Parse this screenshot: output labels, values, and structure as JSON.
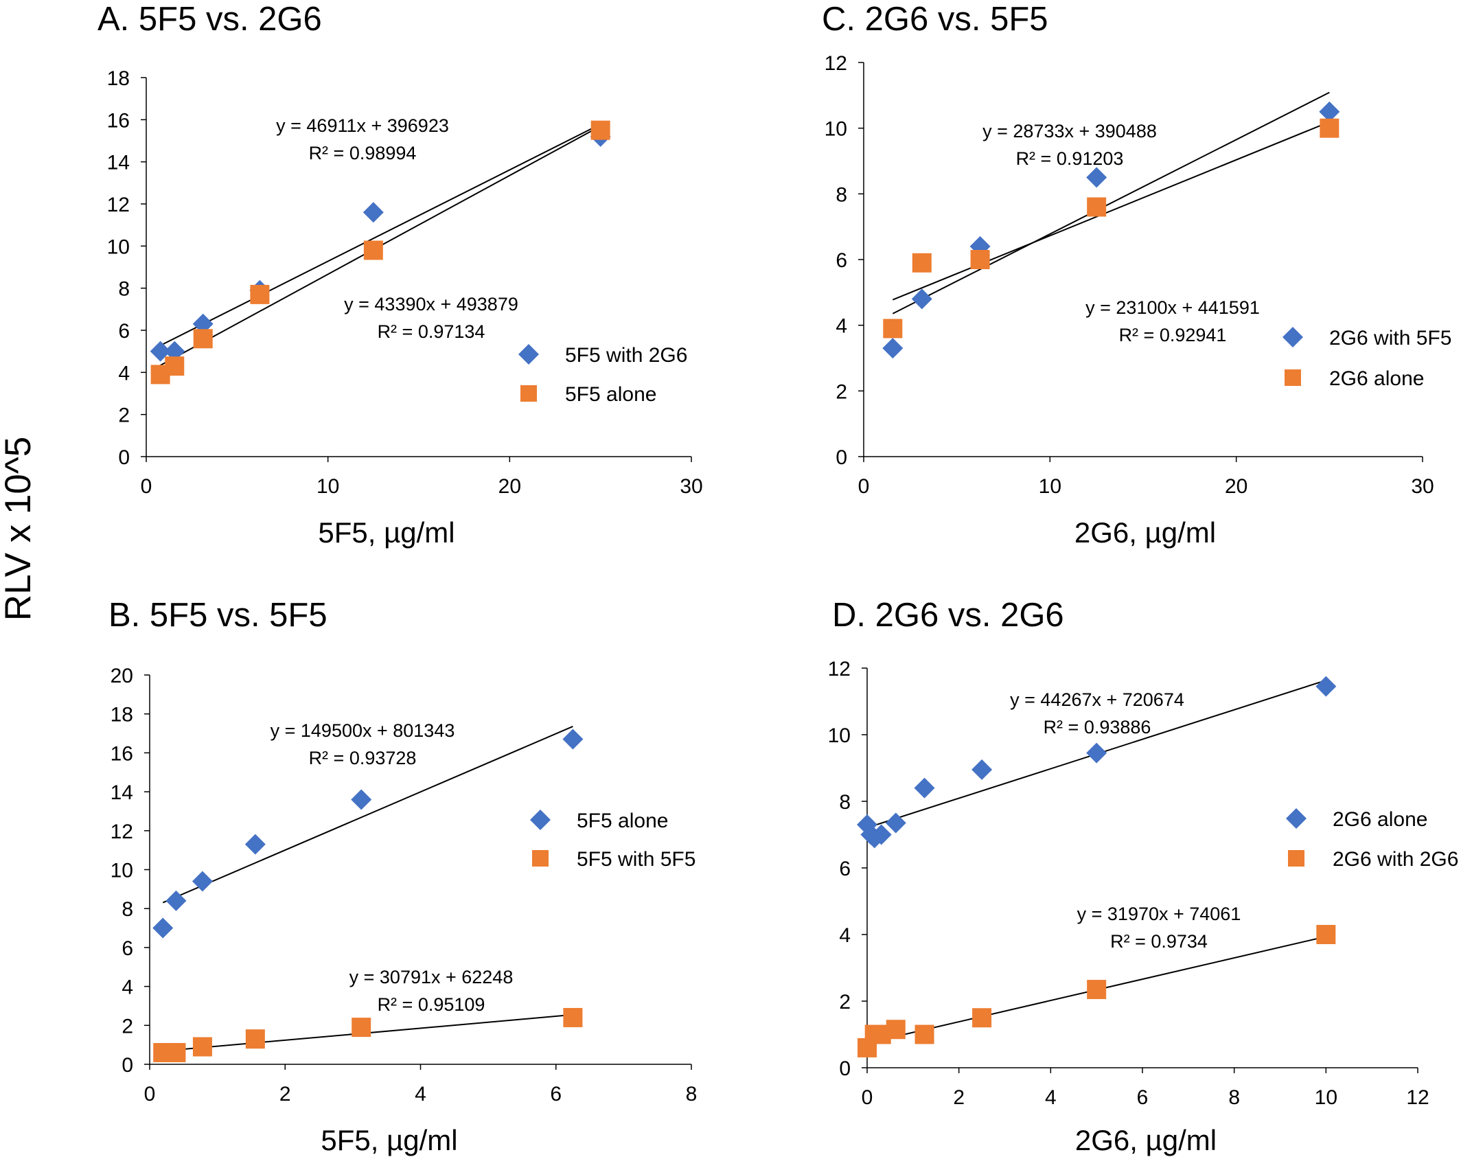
{
  "figure": {
    "shared_ylabel": "RLV x 10^5"
  },
  "chart_data": [
    {
      "id": "A",
      "type": "scatter",
      "title": "A.  5F5 vs. 2G6",
      "xlabel": "5F5, µg/ml",
      "ylabel": "RLV x 10^5",
      "xlim": [
        0,
        30
      ],
      "ylim": [
        0,
        18
      ],
      "xticks": [
        0,
        10,
        20,
        30
      ],
      "yticks": [
        0,
        2,
        4,
        6,
        8,
        10,
        12,
        14,
        16,
        18
      ],
      "legend_position": "right",
      "series": [
        {
          "name": "5F5 with 2G6",
          "marker": "diamond",
          "color": "#4472C4",
          "x": [
            0.78,
            1.56,
            3.125,
            6.25,
            12.5,
            25
          ],
          "y": [
            5.0,
            5.0,
            6.3,
            7.9,
            11.6,
            15.2
          ],
          "trendline": {
            "slope": 0.46911,
            "intercept": 3.96923,
            "x_range": [
              0.78,
              25
            ],
            "equation": "y = 46911x + 396923",
            "r2": "R² = 0.98994"
          }
        },
        {
          "name": "5F5 alone",
          "marker": "square",
          "color": "#ED7D31",
          "x": [
            0.78,
            1.56,
            3.125,
            6.25,
            12.5,
            25
          ],
          "y": [
            3.9,
            4.3,
            5.6,
            7.7,
            9.8,
            15.5
          ],
          "trendline": {
            "slope": 0.4339,
            "intercept": 4.93879,
            "x_range": [
              0.78,
              25
            ],
            "equation": "y = 43390x + 493879",
            "r2": "R² = 0.97134"
          }
        }
      ]
    },
    {
      "id": "B",
      "type": "scatter",
      "title": "B.  5F5 vs. 5F5",
      "xlabel": "5F5, µg/ml",
      "ylabel": "RLV x 10^5",
      "xlim": [
        0,
        8
      ],
      "ylim": [
        0,
        20
      ],
      "xticks": [
        0,
        2,
        4,
        6,
        8
      ],
      "yticks": [
        0,
        2,
        4,
        6,
        8,
        10,
        12,
        14,
        16,
        18,
        20
      ],
      "legend_position": "right",
      "series": [
        {
          "name": "5F5 alone",
          "marker": "diamond",
          "color": "#4472C4",
          "x": [
            0.195,
            0.39,
            0.78,
            1.56,
            3.125,
            6.25
          ],
          "y": [
            7.0,
            8.4,
            9.4,
            11.3,
            13.6,
            16.7
          ],
          "trendline": {
            "slope": 1.495,
            "intercept": 8.01343,
            "x_range": [
              0.195,
              6.25
            ],
            "equation": "y = 149500x + 801343",
            "r2": "R² = 0.93728"
          }
        },
        {
          "name": "5F5 with 5F5",
          "marker": "square",
          "color": "#ED7D31",
          "x": [
            0.195,
            0.39,
            0.78,
            1.56,
            3.125,
            6.25
          ],
          "y": [
            0.6,
            0.6,
            0.9,
            1.3,
            1.9,
            2.4
          ],
          "trendline": {
            "slope": 0.30791,
            "intercept": 0.62248,
            "x_range": [
              0.195,
              6.25
            ],
            "equation": "y = 30791x + 62248",
            "r2": "R² = 0.95109"
          }
        }
      ]
    },
    {
      "id": "C",
      "type": "scatter",
      "title": "C.  2G6 vs. 5F5",
      "xlabel": "2G6, µg/ml",
      "ylabel": "RLV x 10^5",
      "xlim": [
        0,
        30
      ],
      "ylim": [
        0,
        12
      ],
      "xticks": [
        0,
        10,
        20,
        30
      ],
      "yticks": [
        0,
        2,
        4,
        6,
        8,
        10,
        12
      ],
      "legend_position": "right",
      "series": [
        {
          "name": "2G6 with 5F5",
          "marker": "diamond",
          "color": "#4472C4",
          "x": [
            1.56,
            3.125,
            6.25,
            12.5,
            25
          ],
          "y": [
            3.3,
            4.8,
            6.4,
            8.5,
            10.5
          ],
          "trendline": {
            "slope": 0.28733,
            "intercept": 3.90488,
            "x_range": [
              1.56,
              25
            ],
            "equation": "y = 28733x + 390488",
            "r2": "R² = 0.91203"
          }
        },
        {
          "name": "2G6 alone",
          "marker": "square",
          "color": "#ED7D31",
          "x": [
            1.56,
            3.125,
            6.25,
            12.5,
            25
          ],
          "y": [
            3.9,
            5.9,
            6.0,
            7.6,
            10.0
          ],
          "trendline": {
            "slope": 0.231,
            "intercept": 4.41591,
            "x_range": [
              1.56,
              25
            ],
            "equation": "y = 23100x + 441591",
            "r2": "R² = 0.92941"
          }
        }
      ]
    },
    {
      "id": "D",
      "type": "scatter",
      "title": "D.  2G6 vs. 2G6",
      "xlabel": "2G6, µg/ml",
      "ylabel": "RLV x 10^5",
      "xlim": [
        0,
        12
      ],
      "ylim": [
        0,
        12
      ],
      "xticks": [
        0,
        2,
        4,
        6,
        8,
        10,
        12
      ],
      "yticks": [
        0,
        2,
        4,
        6,
        8,
        10,
        12
      ],
      "legend_position": "right",
      "series": [
        {
          "name": "2G6 alone",
          "marker": "diamond",
          "color": "#4472C4",
          "x": [
            0.0,
            0.08,
            0.16,
            0.31,
            0.625,
            1.25,
            2.5,
            5.0,
            10.0
          ],
          "y": [
            7.3,
            7.0,
            6.9,
            7.0,
            7.35,
            8.4,
            8.95,
            9.45,
            11.45
          ],
          "trendline": {
            "slope": 0.44267,
            "intercept": 7.20674,
            "x_range": [
              0,
              10
            ],
            "equation": "y = 44267x + 720674",
            "r2": "R² = 0.93886"
          }
        },
        {
          "name": "2G6 with 2G6",
          "marker": "square",
          "color": "#ED7D31",
          "x": [
            0.0,
            0.16,
            0.31,
            0.625,
            1.25,
            2.5,
            5.0,
            10.0
          ],
          "y": [
            0.6,
            1.0,
            1.0,
            1.15,
            1.0,
            1.5,
            2.35,
            4.0
          ],
          "trendline": {
            "slope": 0.3197,
            "intercept": 0.74061,
            "x_range": [
              0,
              10
            ],
            "equation": "y = 31970x + 74061",
            "r2": "R² = 0.9734"
          }
        }
      ]
    }
  ]
}
